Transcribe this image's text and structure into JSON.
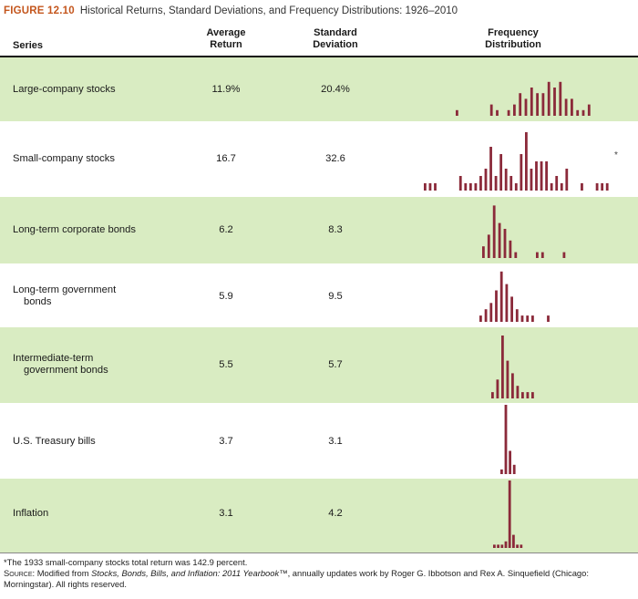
{
  "figure": {
    "label": "FIGURE 12.10",
    "caption": "Historical Returns, Standard Deviations, and Frequency Distributions: 1926–2010"
  },
  "columns": {
    "series": "Series",
    "avg_line1": "Average",
    "avg_line2": "Return",
    "sd_line1": "Standard",
    "sd_line2": "Deviation",
    "dist_line1": "Frequency",
    "dist_line2": "Distribution"
  },
  "rows": [
    {
      "line1": "Large-company stocks",
      "line2": "",
      "avg": "11.9%",
      "sd": "20.4%",
      "freq": [
        1,
        0,
        0,
        0,
        0,
        0,
        2,
        1,
        0,
        1,
        2,
        4,
        3,
        5,
        4,
        4,
        6,
        5,
        6,
        3,
        3,
        1,
        1,
        2
      ]
    },
    {
      "line1": "Small-company stocks",
      "line2": "",
      "avg": "16.7",
      "sd": "32.6",
      "note": "*",
      "freq": [
        1,
        1,
        1,
        0,
        0,
        0,
        0,
        2,
        1,
        1,
        1,
        2,
        3,
        6,
        2,
        5,
        3,
        2,
        1,
        5,
        8,
        3,
        4,
        4,
        4,
        1,
        2,
        1,
        3,
        0,
        0,
        1,
        0,
        0,
        1,
        1,
        1
      ]
    },
    {
      "line1": "Long-term corporate bonds",
      "line2": "",
      "avg": "6.2",
      "sd": "8.3",
      "freq": [
        2,
        4,
        9,
        6,
        5,
        3,
        1,
        0,
        0,
        0,
        1,
        1,
        0,
        0,
        0,
        1
      ]
    },
    {
      "line1": "Long-term government",
      "line2": "bonds",
      "avg": "5.9",
      "sd": "9.5",
      "freq": [
        1,
        2,
        3,
        5,
        8,
        6,
        4,
        2,
        1,
        1,
        1,
        0,
        0,
        1
      ]
    },
    {
      "line1": "Intermediate-term",
      "line2": "government bonds",
      "avg": "5.5",
      "sd": "5.7",
      "freq": [
        1,
        3,
        10,
        6,
        4,
        2,
        1,
        1,
        1
      ]
    },
    {
      "line1": "U.S. Treasury bills",
      "line2": "",
      "avg": "3.7",
      "sd": "3.1",
      "freq": [
        1,
        15,
        5,
        2
      ]
    },
    {
      "line1": "Inflation",
      "line2": "",
      "avg": "3.1",
      "sd": "4.2",
      "freq": [
        1,
        1,
        1,
        2,
        21,
        4,
        1,
        1
      ]
    }
  ],
  "footnote": "*The 1933 small-company stocks total return was 142.9 percent.",
  "source": {
    "label": "Source:",
    "text_before": " Modified from ",
    "title": "Stocks, Bonds, Bills, and Inflation: 2011 Yearbook",
    "text_after": "™, annually updates work by Roger G. Ibbotson and Rex A. Sinquefield (Chicago: Morningstar). All rights reserved."
  },
  "colors": {
    "bar": "#8b2a3a",
    "band": "#d9ecc2",
    "accent": "#c4561d"
  }
}
